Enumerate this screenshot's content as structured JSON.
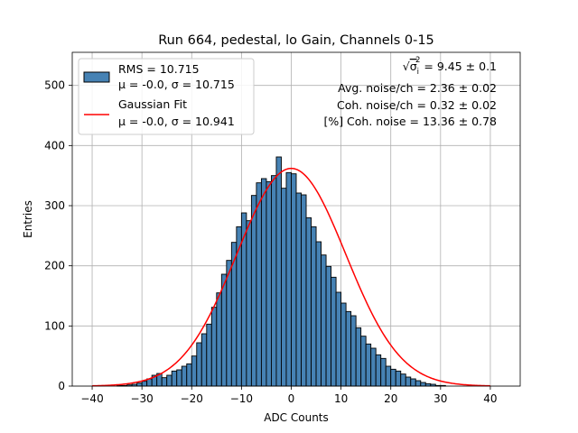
{
  "chart_data": {
    "type": "bar",
    "title": "Run 664, pedestal, lo Gain, Channels 0-15",
    "xlabel": "ADC Counts",
    "ylabel": "Entries",
    "xlim": [
      -44,
      46
    ],
    "ylim": [
      0,
      555
    ],
    "xticks": [
      -40,
      -30,
      -20,
      -10,
      0,
      10,
      20,
      30,
      40
    ],
    "yticks": [
      0,
      100,
      200,
      300,
      400,
      500
    ],
    "grid": true,
    "legend_placement": "top-left",
    "bin_start": -40,
    "bin_width": 1,
    "values": [
      0,
      0,
      0,
      0,
      0,
      1,
      1,
      2,
      3,
      5,
      8,
      12,
      18,
      21,
      14,
      18,
      25,
      27,
      33,
      37,
      50,
      72,
      87,
      103,
      131,
      155,
      186,
      209,
      239,
      265,
      288,
      275,
      317,
      338,
      345,
      340,
      350,
      381,
      329,
      355,
      353,
      321,
      318,
      280,
      265,
      240,
      218,
      199,
      181,
      156,
      138,
      124,
      117,
      97,
      83,
      70,
      63,
      52,
      46,
      33,
      28,
      25,
      20,
      15,
      12,
      9,
      6,
      4,
      3,
      1,
      1,
      0,
      0,
      0,
      0,
      0,
      0,
      0,
      0,
      0,
      0
    ],
    "series": [
      {
        "name": "RMS = 10.715",
        "name_line2": "μ = -0.0, σ = 10.715",
        "kind": "histogram",
        "fill": "#4682b4",
        "edge": "#000000"
      },
      {
        "name": "Gaussian Fit",
        "name_line2": "μ = -0.0, σ = 10.941",
        "kind": "line",
        "color": "#ff0000",
        "mu": 0.0,
        "sigma": 10.941,
        "amplitude": 362
      }
    ],
    "annotations": [
      {
        "prefix": "√",
        "sigma": "σ",
        "sub": "i",
        "sup": "2",
        "rest": " = 9.45 ± 0.1"
      },
      {
        "text": "Avg. noise/ch = 2.36 ± 0.02"
      },
      {
        "text": "Coh. noise/ch = 0.32 ± 0.02"
      },
      {
        "text": "[%] Coh. noise = 13.36 ± 0.78"
      }
    ]
  }
}
